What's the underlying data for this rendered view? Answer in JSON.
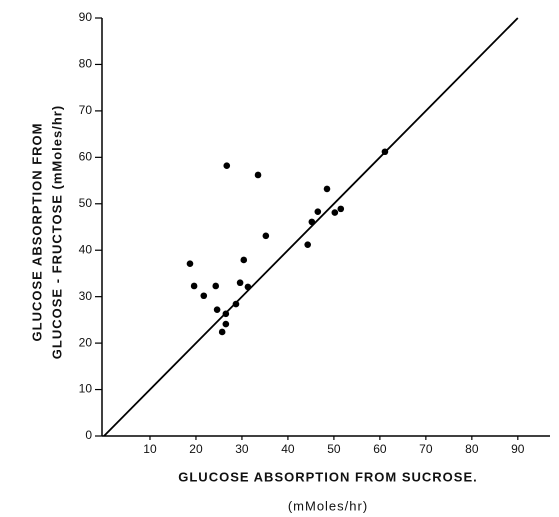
{
  "chart_data": {
    "type": "scatter",
    "x_label": "GLUCOSE    ABSORPTION    FROM    SUCROSE.",
    "x_label_unit": "(mMoles/hr)",
    "y_label": "GLUCOSE    ABSORPTION    FROM",
    "y_label_2": "GLUCOSE - FRUCTOSE  (mMoles/hr)",
    "xlim": [
      0,
      97
    ],
    "ylim": [
      0,
      90
    ],
    "xticks": [
      10,
      20,
      30,
      40,
      50,
      60,
      70,
      80,
      90
    ],
    "yticks": [
      0,
      10,
      20,
      30,
      40,
      50,
      60,
      70,
      80,
      90
    ],
    "color": "#000000",
    "identity_line": {
      "x": [
        0,
        90
      ],
      "y": [
        0,
        90
      ]
    },
    "x": [
      18.7,
      19.6,
      21.7,
      24.3,
      24.6,
      26.5,
      26.7,
      26.5,
      25.7,
      28.7,
      29.6,
      30.4,
      31.3,
      33.5,
      35.2,
      44.3,
      45.2,
      46.5,
      48.5,
      50.2,
      51.5,
      61.1
    ],
    "values": [
      37.1,
      32.3,
      30.2,
      32.3,
      27.2,
      24.1,
      58.2,
      26.3,
      22.4,
      28.4,
      33.0,
      37.9,
      32.1,
      56.2,
      43.1,
      41.2,
      46.1,
      48.3,
      53.2,
      48.1,
      48.9,
      61.2
    ]
  }
}
